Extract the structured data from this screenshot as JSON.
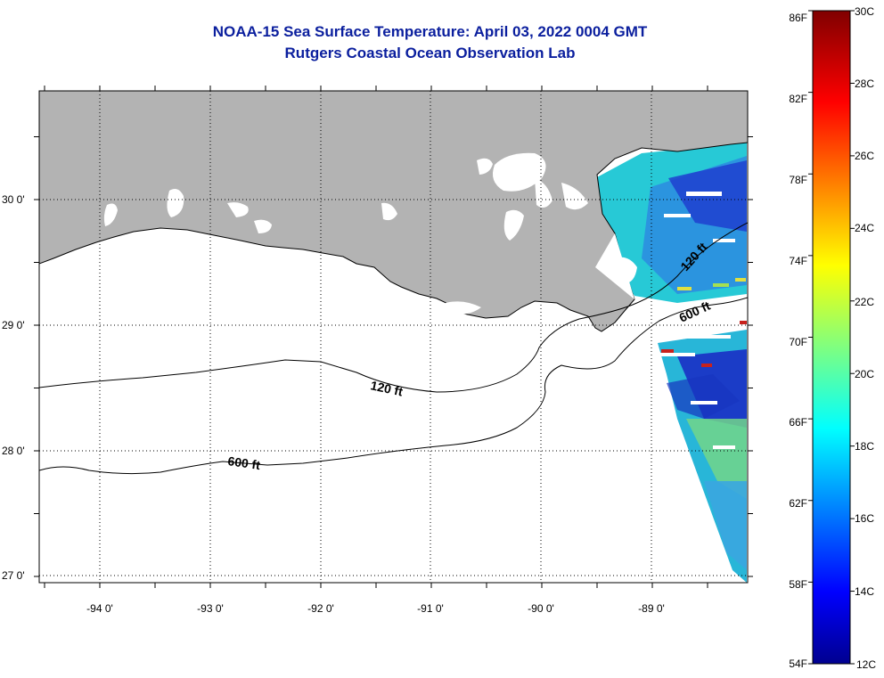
{
  "title_line1": "NOAA-15 Sea Surface Temperature:  April 03, 2022 0004 GMT",
  "title_line2": "Rutgers Coastal Ocean Observation Lab",
  "map": {
    "lon_labels": [
      "-94 0'",
      "-93 0'",
      "-92 0'",
      "-91 0'",
      "-90 0'",
      "-89 0'"
    ],
    "lat_labels": [
      "30 0'",
      "29 0'",
      "28 0'",
      "27 0'"
    ],
    "contour_labels": {
      "c120_west": "120 ft",
      "c600_west": "600 ft",
      "c120_east": "120 ft",
      "c600_east": "600 ft"
    },
    "colors": {
      "land": "#b3b3b3",
      "cloud": "#ffffff",
      "ocean": "#ffffff"
    }
  },
  "colorbar": {
    "fahrenheit_labels": [
      "86F",
      "82F",
      "78F",
      "74F",
      "70F",
      "66F",
      "62F",
      "58F",
      "54F"
    ],
    "celsius_labels": [
      "30C",
      "28C",
      "26C",
      "24C",
      "22C",
      "20C",
      "18C",
      "16C",
      "14C",
      "12C"
    ],
    "colormap": "jet",
    "range_c": [
      12,
      30
    ]
  }
}
